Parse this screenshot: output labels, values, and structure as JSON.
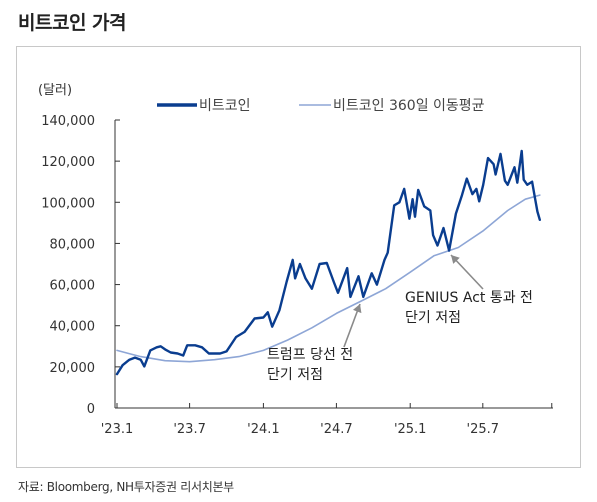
{
  "title": "비트코인 가격",
  "source": "자료: Bloomberg, NH투자증권 리서치본부",
  "chart_data": {
    "type": "line",
    "unit_label": "(달러)",
    "yticks": [
      "0",
      "20,000",
      "40,000",
      "60,000",
      "80,000",
      "100,000",
      "120,000",
      "140,000"
    ],
    "ylim": [
      0,
      140000
    ],
    "xticks": [
      "'23.1",
      "'23.7",
      "'24.1",
      "'24.7",
      "'25.1",
      "'25.7"
    ],
    "x_dates": [
      "2023-01-01",
      "2023-07-01",
      "2024-01-01",
      "2024-07-01",
      "2025-01-01",
      "2025-07-01"
    ],
    "x_end": "2025-11-20",
    "legend_position": "top",
    "grid": false,
    "colors": {
      "price": "#0a3d8f",
      "ma360": "#8ea6d6"
    },
    "series": [
      {
        "name": "비트코인",
        "points": [
          [
            "2023-01-01",
            16500
          ],
          [
            "2023-01-15",
            20800
          ],
          [
            "2023-02-01",
            23500
          ],
          [
            "2023-02-15",
            24500
          ],
          [
            "2023-03-01",
            23500
          ],
          [
            "2023-03-10",
            20200
          ],
          [
            "2023-03-25",
            28000
          ],
          [
            "2023-04-10",
            29500
          ],
          [
            "2023-04-20",
            30000
          ],
          [
            "2023-05-01",
            28500
          ],
          [
            "2023-05-15",
            27000
          ],
          [
            "2023-06-01",
            26500
          ],
          [
            "2023-06-15",
            25500
          ],
          [
            "2023-06-25",
            30500
          ],
          [
            "2023-07-15",
            30500
          ],
          [
            "2023-08-01",
            29500
          ],
          [
            "2023-08-18",
            26500
          ],
          [
            "2023-09-15",
            26500
          ],
          [
            "2023-10-01",
            27500
          ],
          [
            "2023-10-25",
            34500
          ],
          [
            "2023-11-15",
            37000
          ],
          [
            "2023-12-10",
            43500
          ],
          [
            "2024-01-01",
            44000
          ],
          [
            "2024-01-12",
            46500
          ],
          [
            "2024-01-23",
            39500
          ],
          [
            "2024-02-10",
            47500
          ],
          [
            "2024-02-28",
            61500
          ],
          [
            "2024-03-14",
            72000
          ],
          [
            "2024-03-20",
            63000
          ],
          [
            "2024-04-01",
            70000
          ],
          [
            "2024-04-15",
            63000
          ],
          [
            "2024-05-01",
            58000
          ],
          [
            "2024-05-20",
            70000
          ],
          [
            "2024-06-07",
            70500
          ],
          [
            "2024-06-25",
            61000
          ],
          [
            "2024-07-05",
            56000
          ],
          [
            "2024-07-28",
            68000
          ],
          [
            "2024-08-05",
            54000
          ],
          [
            "2024-08-25",
            64000
          ],
          [
            "2024-09-06",
            54000
          ],
          [
            "2024-09-27",
            65500
          ],
          [
            "2024-10-10",
            60000
          ],
          [
            "2024-10-29",
            72000
          ],
          [
            "2024-11-06",
            75500
          ],
          [
            "2024-11-22",
            98500
          ],
          [
            "2024-12-05",
            100000
          ],
          [
            "2024-12-17",
            106500
          ],
          [
            "2024-12-30",
            92000
          ],
          [
            "2025-01-07",
            101500
          ],
          [
            "2025-01-13",
            93000
          ],
          [
            "2025-01-21",
            106000
          ],
          [
            "2025-02-05",
            98000
          ],
          [
            "2025-02-20",
            96000
          ],
          [
            "2025-02-27",
            84000
          ],
          [
            "2025-03-10",
            79000
          ],
          [
            "2025-03-25",
            87500
          ],
          [
            "2025-04-08",
            76500
          ],
          [
            "2025-04-25",
            94500
          ],
          [
            "2025-05-10",
            103500
          ],
          [
            "2025-05-22",
            111500
          ],
          [
            "2025-06-05",
            104000
          ],
          [
            "2025-06-15",
            106500
          ],
          [
            "2025-06-22",
            100500
          ],
          [
            "2025-07-02",
            108500
          ],
          [
            "2025-07-14",
            121500
          ],
          [
            "2025-07-28",
            118500
          ],
          [
            "2025-08-02",
            113500
          ],
          [
            "2025-08-14",
            123500
          ],
          [
            "2025-08-25",
            110500
          ],
          [
            "2025-09-01",
            108500
          ],
          [
            "2025-09-18",
            117000
          ],
          [
            "2025-09-25",
            109500
          ],
          [
            "2025-10-06",
            125000
          ],
          [
            "2025-10-11",
            111000
          ],
          [
            "2025-10-20",
            108500
          ],
          [
            "2025-11-01",
            110000
          ],
          [
            "2025-11-08",
            102000
          ],
          [
            "2025-11-14",
            95500
          ],
          [
            "2025-11-20",
            91500
          ]
        ]
      },
      {
        "name": "비트코인 360일 이동평균",
        "points": [
          [
            "2023-01-01",
            28000
          ],
          [
            "2023-03-01",
            25000
          ],
          [
            "2023-05-01",
            23000
          ],
          [
            "2023-07-01",
            22500
          ],
          [
            "2023-09-01",
            23500
          ],
          [
            "2023-11-01",
            25000
          ],
          [
            "2024-01-01",
            28000
          ],
          [
            "2024-03-01",
            33000
          ],
          [
            "2024-05-01",
            39000
          ],
          [
            "2024-07-01",
            46000
          ],
          [
            "2024-09-01",
            52000
          ],
          [
            "2024-11-01",
            58000
          ],
          [
            "2025-01-01",
            66000
          ],
          [
            "2025-03-01",
            74000
          ],
          [
            "2025-05-01",
            78000
          ],
          [
            "2025-07-01",
            86000
          ],
          [
            "2025-09-01",
            96000
          ],
          [
            "2025-10-15",
            101500
          ],
          [
            "2025-11-20",
            103500
          ]
        ]
      }
    ],
    "annotations": [
      {
        "lines": [
          "트럼프 당선 전",
          "단기 저점"
        ],
        "target": [
          "2024-09-06",
          54000
        ]
      },
      {
        "lines": [
          "GENIUS Act 통과 전",
          "단기 저점"
        ],
        "target": [
          "2025-04-08",
          76500
        ]
      }
    ]
  }
}
